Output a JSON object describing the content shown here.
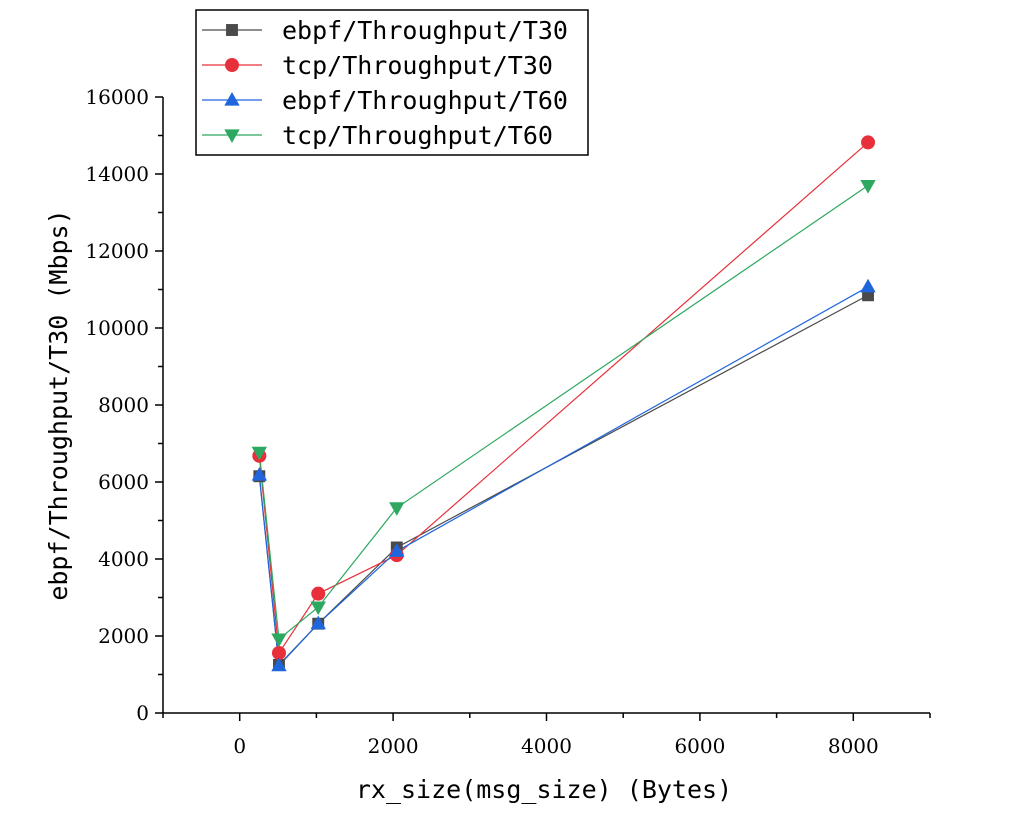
{
  "chart_data": {
    "type": "line",
    "title": "",
    "xlabel": "rx_size(msg_size) (Bytes)",
    "ylabel": "ebpf/Throughput/T30 (Mbps)",
    "xlim": [
      -1000,
      9000
    ],
    "ylim": [
      0,
      16000
    ],
    "x_ticks": [
      0,
      2000,
      4000,
      6000,
      8000
    ],
    "y_ticks": [
      0,
      2000,
      4000,
      6000,
      8000,
      10000,
      12000,
      14000,
      16000
    ],
    "grid": false,
    "legend_position": "top-left",
    "series": [
      {
        "name": "ebpf/Throughput/T30",
        "marker": "square",
        "color": "#4a4a4a",
        "x": [
          256,
          512,
          1024,
          2048,
          8192
        ],
        "y": [
          6150,
          1250,
          2320,
          4300,
          10850
        ]
      },
      {
        "name": "tcp/Throughput/T30",
        "marker": "circle",
        "color": "#e8303a",
        "x": [
          256,
          512,
          1024,
          2048,
          8192
        ],
        "y": [
          6680,
          1560,
          3100,
          4100,
          14820
        ]
      },
      {
        "name": "ebpf/Throughput/T60",
        "marker": "triangle-up",
        "color": "#1f66dc",
        "x": [
          256,
          512,
          1024,
          2048,
          8192
        ],
        "y": [
          6180,
          1230,
          2320,
          4200,
          11070
        ]
      },
      {
        "name": "tcp/Throughput/T60",
        "marker": "triangle-down",
        "color": "#2ea860",
        "x": [
          256,
          512,
          1024,
          2048,
          8192
        ],
        "y": [
          6770,
          1920,
          2750,
          5330,
          13700
        ]
      }
    ]
  }
}
